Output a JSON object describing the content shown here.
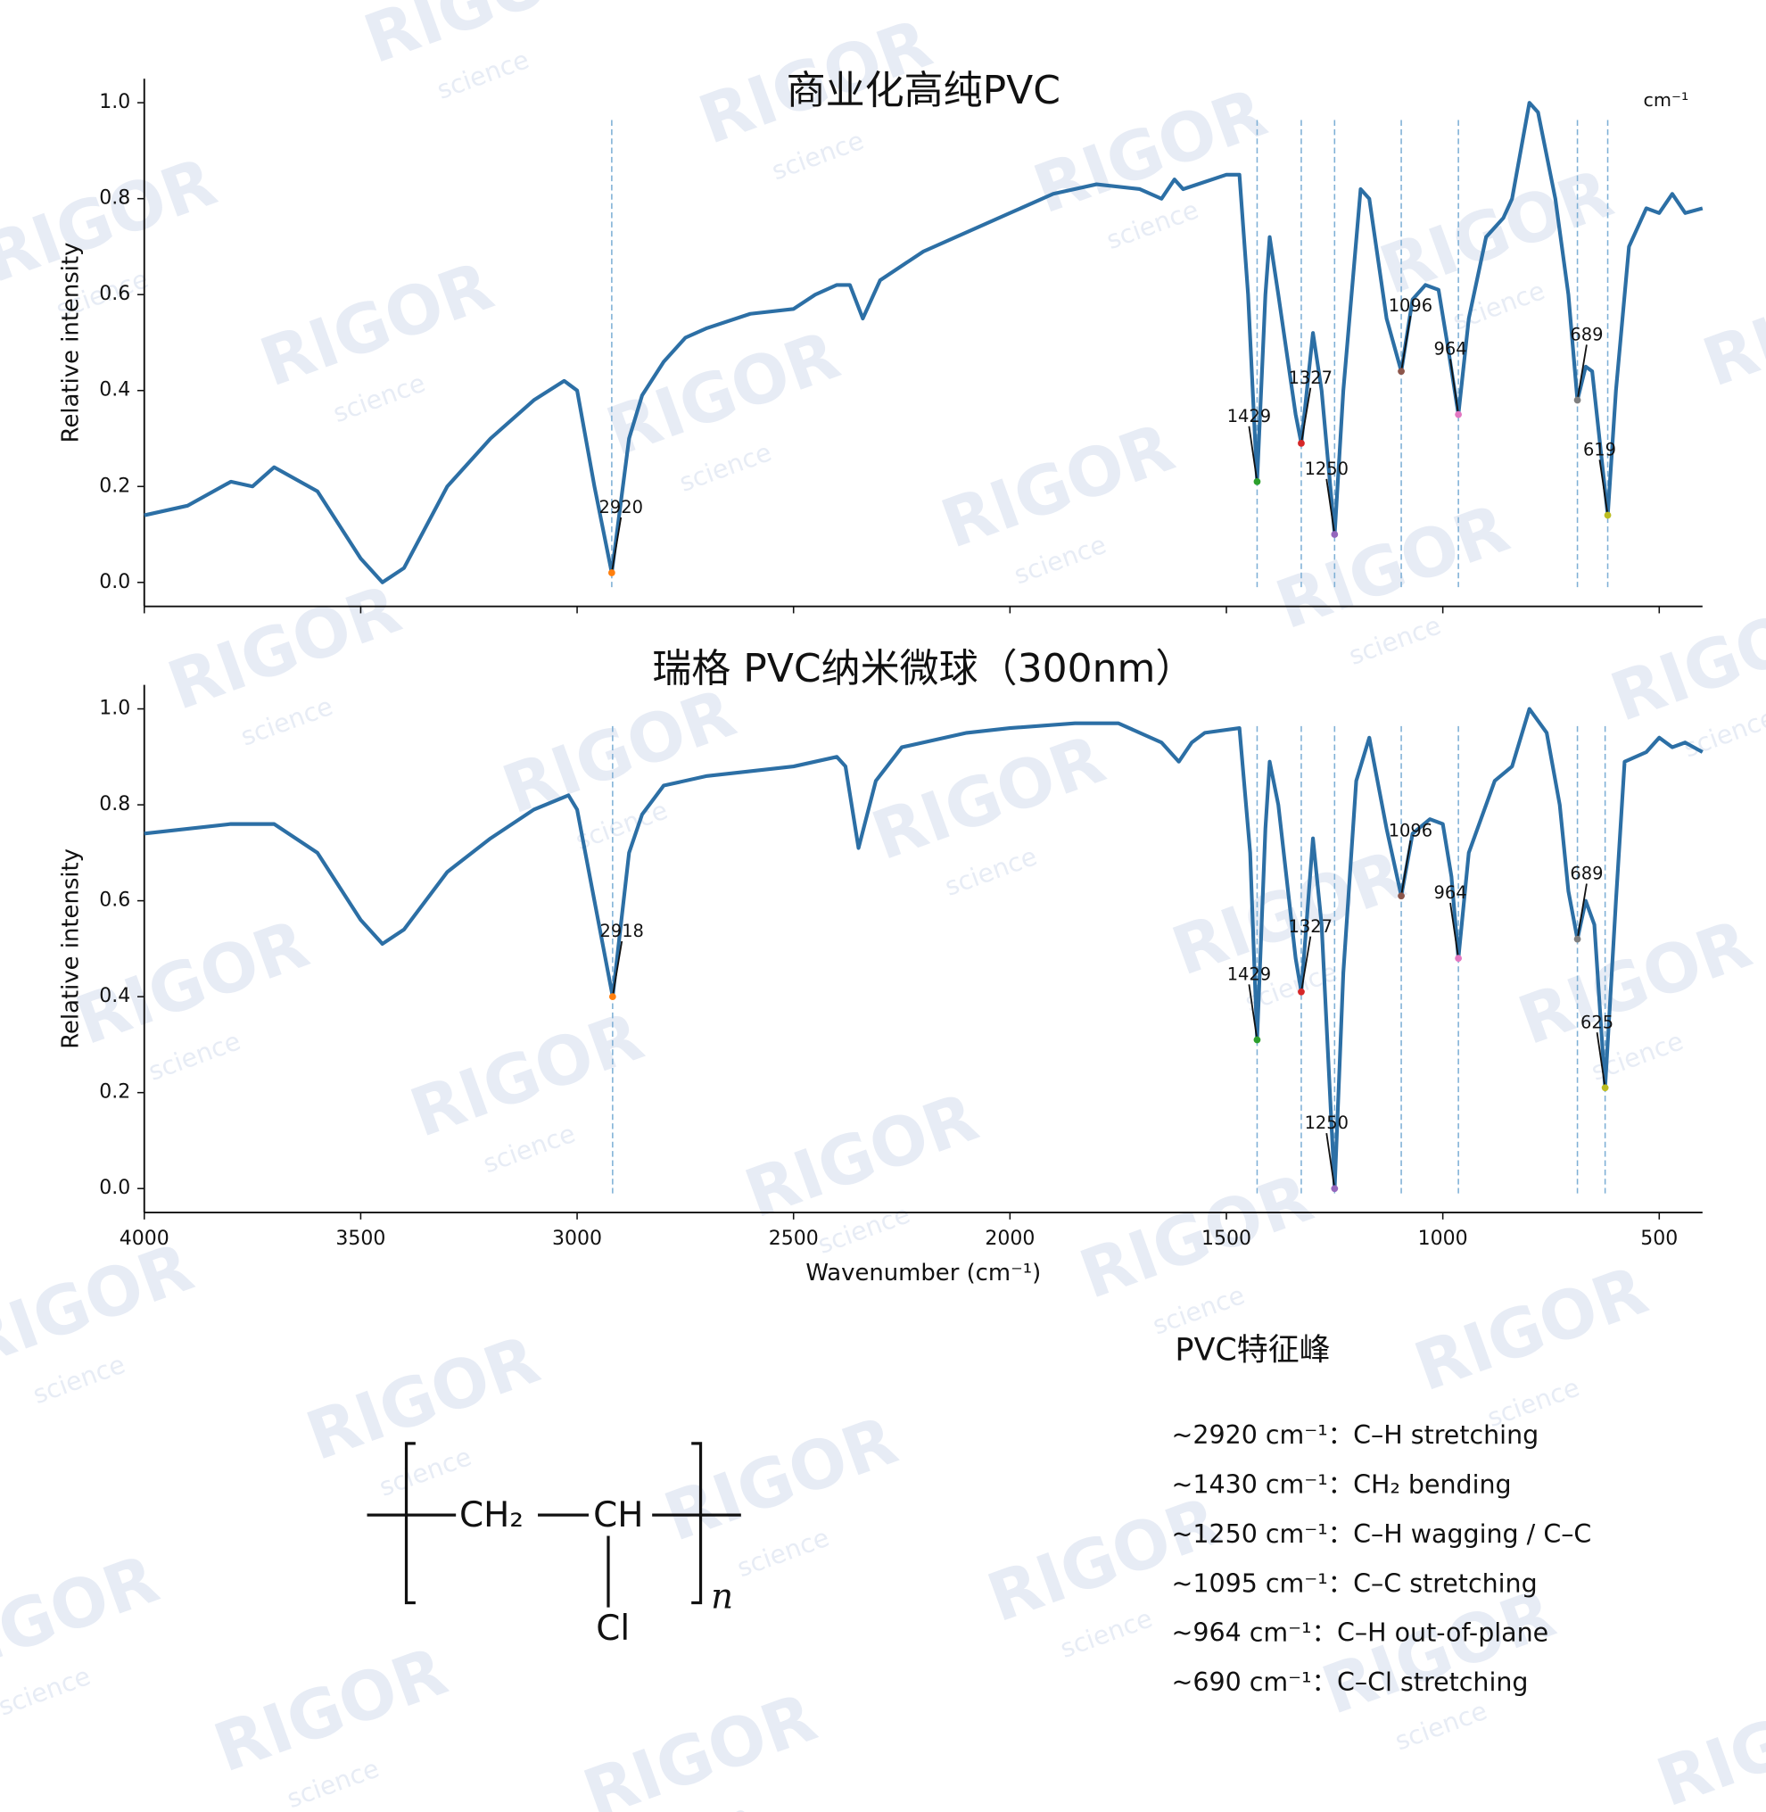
{
  "chart_data": [
    {
      "type": "line",
      "title": "商业化高纯PVC",
      "ylabel": "Relative intensity",
      "annotation": "cm⁻¹",
      "color": "#2c6fa5",
      "xlim": [
        4000,
        400
      ],
      "ylim": [
        -0.05,
        1.05
      ],
      "xticks": [
        4000,
        3500,
        3000,
        2500,
        2000,
        1500,
        1000,
        500
      ],
      "xticklabels": false,
      "yticks": [
        {
          "value": 0,
          "label": "0.0"
        },
        {
          "value": 0.2,
          "label": "0.2"
        },
        {
          "value": 0.4,
          "label": "0.4"
        },
        {
          "value": 0.6,
          "label": "0.6"
        },
        {
          "value": 0.8,
          "label": "0.8"
        },
        {
          "value": 1,
          "label": "1.0"
        }
      ],
      "x": [
        4000,
        3900,
        3800,
        3750,
        3700,
        3600,
        3500,
        3450,
        3400,
        3300,
        3200,
        3100,
        3030,
        3000,
        2960,
        2920,
        2880,
        2850,
        2800,
        2750,
        2700,
        2600,
        2500,
        2450,
        2400,
        2370,
        2340,
        2300,
        2200,
        2000,
        1900,
        1800,
        1700,
        1650,
        1620,
        1600,
        1500,
        1470,
        1450,
        1429,
        1410,
        1400,
        1380,
        1340,
        1327,
        1300,
        1280,
        1250,
        1230,
        1190,
        1170,
        1130,
        1096,
        1070,
        1040,
        1010,
        990,
        964,
        940,
        900,
        860,
        840,
        800,
        780,
        740,
        710,
        689,
        670,
        655,
        619,
        600,
        570,
        530,
        500,
        470,
        440,
        400
      ],
      "values": [
        0.14,
        0.16,
        0.21,
        0.2,
        0.24,
        0.19,
        0.05,
        0,
        0.03,
        0.2,
        0.3,
        0.38,
        0.42,
        0.4,
        0.2,
        0.02,
        0.3,
        0.39,
        0.46,
        0.51,
        0.53,
        0.56,
        0.57,
        0.6,
        0.62,
        0.62,
        0.55,
        0.63,
        0.69,
        0.77,
        0.81,
        0.83,
        0.82,
        0.8,
        0.84,
        0.82,
        0.85,
        0.85,
        0.6,
        0.21,
        0.6,
        0.72,
        0.6,
        0.35,
        0.29,
        0.52,
        0.4,
        0.1,
        0.4,
        0.82,
        0.8,
        0.55,
        0.44,
        0.59,
        0.62,
        0.61,
        0.5,
        0.35,
        0.55,
        0.72,
        0.76,
        0.8,
        1,
        0.98,
        0.8,
        0.6,
        0.38,
        0.45,
        0.44,
        0.14,
        0.4,
        0.7,
        0.78,
        0.77,
        0.81,
        0.77,
        0.78
      ],
      "peaks": {
        "x": [
          2920,
          1429,
          1327,
          1250,
          1096,
          964,
          689,
          619
        ],
        "values": [
          0.02,
          0.21,
          0.29,
          0.1,
          0.44,
          0.35,
          0.38,
          0.14
        ],
        "colors": [
          "#ff7f0e",
          "#2ca02c",
          "#d62728",
          "#9467bd",
          "#8c564b",
          "#e377c2",
          "#7f7f7f",
          "#bcbd22"
        ],
        "line_color": "#7fb0d6"
      }
    },
    {
      "type": "line",
      "title": "瑞格 PVC纳米微球（300nm）",
      "ylabel": "Relative intensity",
      "xlabel": "Wavenumber (cm⁻¹)",
      "color": "#2c6fa5",
      "xlim": [
        4000,
        400
      ],
      "ylim": [
        -0.05,
        1.05
      ],
      "xticks": [
        4000,
        3500,
        3000,
        2500,
        2000,
        1500,
        1000,
        500
      ],
      "yticks": [
        {
          "value": 0,
          "label": "0.0"
        },
        {
          "value": 0.2,
          "label": "0.2"
        },
        {
          "value": 0.4,
          "label": "0.4"
        },
        {
          "value": 0.6,
          "label": "0.6"
        },
        {
          "value": 0.8,
          "label": "0.8"
        },
        {
          "value": 1,
          "label": "1.0"
        }
      ],
      "x": [
        4000,
        3800,
        3700,
        3600,
        3500,
        3450,
        3400,
        3300,
        3200,
        3100,
        3020,
        3000,
        2960,
        2918,
        2880,
        2850,
        2800,
        2700,
        2600,
        2500,
        2400,
        2380,
        2350,
        2310,
        2250,
        2100,
        2000,
        1850,
        1750,
        1650,
        1610,
        1580,
        1550,
        1470,
        1445,
        1429,
        1410,
        1400,
        1380,
        1340,
        1327,
        1300,
        1280,
        1250,
        1230,
        1200,
        1170,
        1130,
        1096,
        1070,
        1030,
        1000,
        980,
        964,
        940,
        880,
        840,
        800,
        760,
        730,
        710,
        689,
        670,
        650,
        625,
        600,
        580,
        530,
        500,
        470,
        440,
        400
      ],
      "values": [
        0.74,
        0.76,
        0.76,
        0.7,
        0.56,
        0.51,
        0.54,
        0.66,
        0.73,
        0.79,
        0.82,
        0.79,
        0.6,
        0.4,
        0.7,
        0.78,
        0.84,
        0.86,
        0.87,
        0.88,
        0.9,
        0.88,
        0.71,
        0.85,
        0.92,
        0.95,
        0.96,
        0.97,
        0.97,
        0.93,
        0.89,
        0.93,
        0.95,
        0.96,
        0.7,
        0.31,
        0.75,
        0.89,
        0.8,
        0.48,
        0.41,
        0.73,
        0.55,
        0,
        0.45,
        0.85,
        0.94,
        0.75,
        0.61,
        0.74,
        0.77,
        0.76,
        0.65,
        0.48,
        0.7,
        0.85,
        0.88,
        1,
        0.95,
        0.8,
        0.62,
        0.52,
        0.6,
        0.55,
        0.21,
        0.6,
        0.89,
        0.91,
        0.94,
        0.92,
        0.93,
        0.91
      ],
      "peaks": {
        "x": [
          2918,
          1429,
          1327,
          1250,
          1096,
          964,
          689,
          625
        ],
        "values": [
          0.4,
          0.31,
          0.41,
          0,
          0.61,
          0.48,
          0.52,
          0.21
        ],
        "colors": [
          "#ff7f0e",
          "#2ca02c",
          "#d62728",
          "#9467bd",
          "#8c564b",
          "#e377c2",
          "#7f7f7f",
          "#bcbd22"
        ],
        "line_color": "#7fb0d6"
      }
    }
  ],
  "structure": {
    "ch2": "CH₂",
    "ch": "CH",
    "cl": "Cl",
    "n": "n"
  },
  "peak_list": {
    "title": "PVC特征峰",
    "items": [
      "~2920 cm⁻¹：C–H stretching",
      "~1430 cm⁻¹：CH₂ bending",
      "~1250 cm⁻¹：C–H wagging / C–C",
      "~1095 cm⁻¹：C–C stretching",
      "~964 cm⁻¹：C–H out-of-plane",
      "~690 cm⁻¹：C–Cl stretching"
    ]
  },
  "watermark": {
    "brand": "RIGOR",
    "sub": "science"
  }
}
